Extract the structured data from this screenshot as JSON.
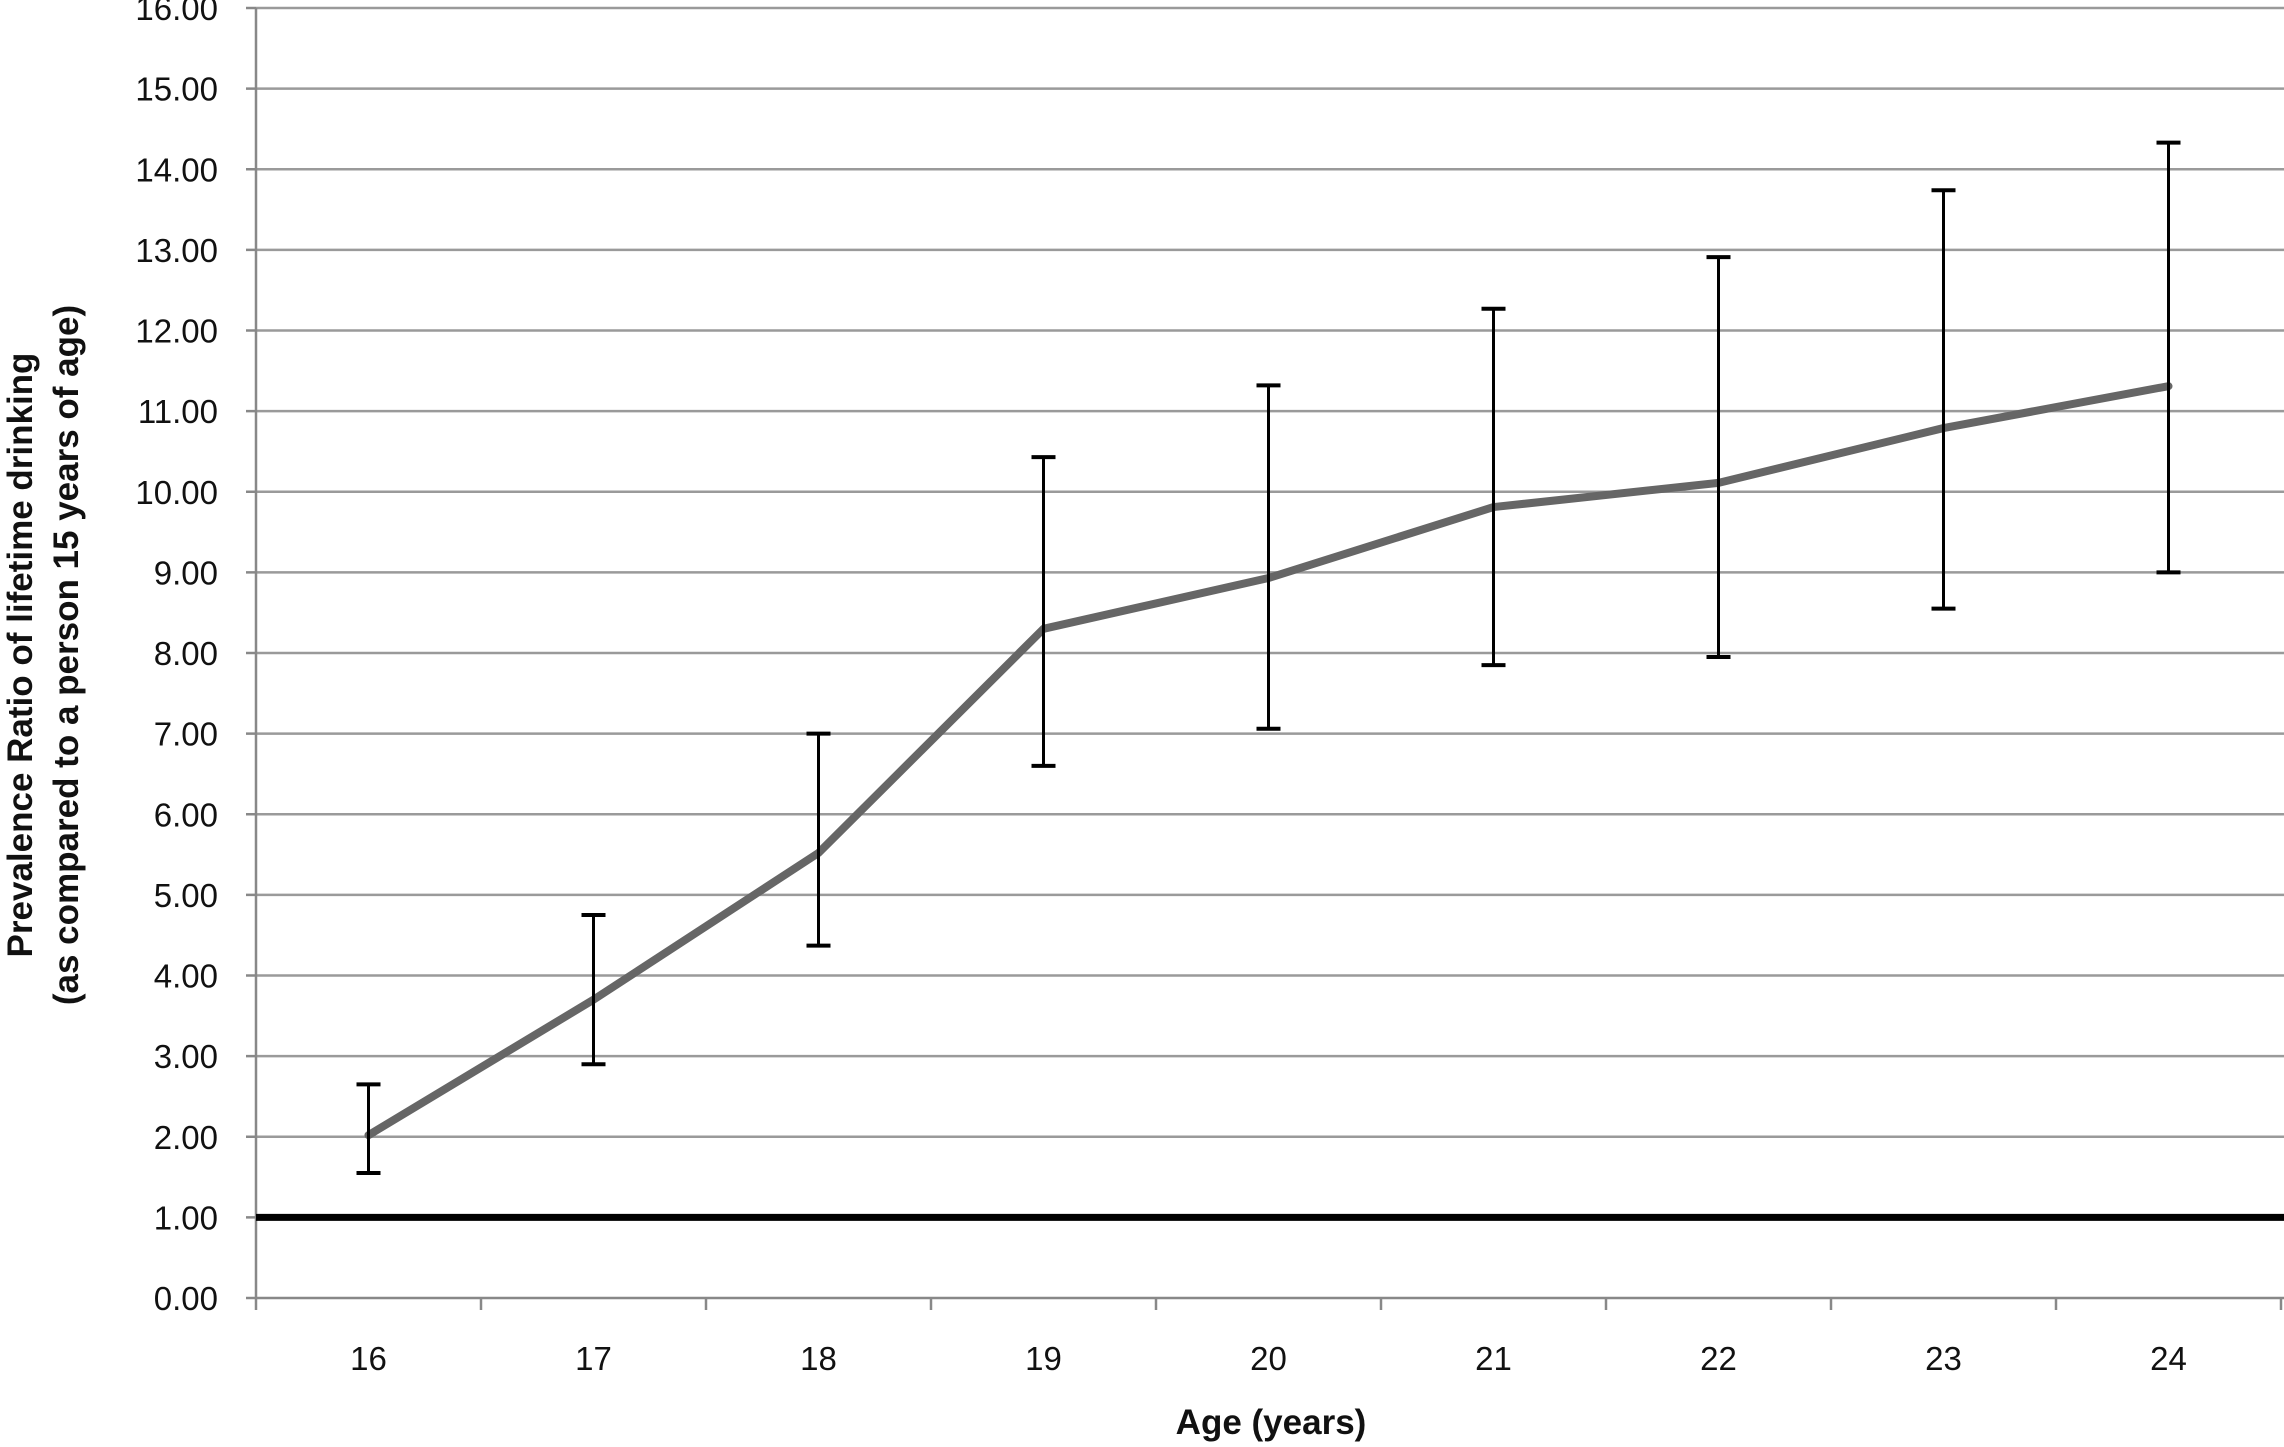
{
  "chart_data": {
    "type": "line",
    "title": "",
    "xlabel": "Age (years)",
    "ylabel_line1": "Prevalence Ratio of lifetime drinking",
    "ylabel_line2": "(as compared to a person 15 years of age)",
    "ylim": [
      0,
      16
    ],
    "y_ticks": [
      "0.00",
      "1.00",
      "2.00",
      "3.00",
      "4.00",
      "5.00",
      "6.00",
      "7.00",
      "8.00",
      "9.00",
      "10.00",
      "11.00",
      "12.00",
      "13.00",
      "14.00",
      "15.00",
      "16.00"
    ],
    "categories": [
      "16",
      "17",
      "18",
      "19",
      "20",
      "21",
      "22",
      "23",
      "24"
    ],
    "series": [
      {
        "values": [
          2.02,
          3.7,
          5.52,
          8.3,
          8.93,
          9.81,
          10.11,
          10.79,
          11.31
        ],
        "lower": [
          1.55,
          2.9,
          4.37,
          6.6,
          7.06,
          7.85,
          7.95,
          8.55,
          9.0
        ],
        "upper": [
          2.65,
          4.75,
          7.0,
          10.43,
          11.32,
          12.27,
          12.91,
          13.74,
          14.33
        ]
      }
    ],
    "reference_line": 1.0,
    "grid": true,
    "legend": "none",
    "colors": {
      "series_line": "#666666",
      "error_bar": "#000000",
      "reference": "#000000",
      "grid": "#9a9a9a",
      "axis": "#888888"
    }
  }
}
